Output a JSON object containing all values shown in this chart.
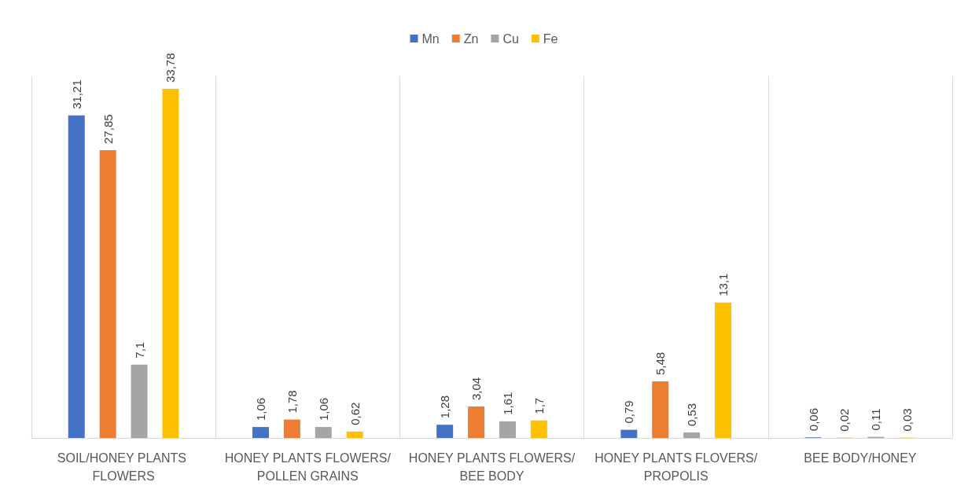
{
  "chart_data": {
    "type": "bar",
    "categories": [
      "SOIL/HONEY PLANTS FLOWERS",
      "HONEY PLANTS FLOWERS/POLLEN GRAINS",
      "HONEY PLANTS FLOWERS/BEE BODY",
      "HONEY PLANTS FLOVERS/PROPOLIS",
      "BEE BODY/HONEY"
    ],
    "series": [
      {
        "name": "Mn",
        "color": "#4472c4",
        "values": [
          31.21,
          1.06,
          1.28,
          0.79,
          0.06
        ],
        "value_labels": [
          "31,21",
          "1,06",
          "1,28",
          "0,79",
          "0,06"
        ]
      },
      {
        "name": "Zn",
        "color": "#ed7d31",
        "values": [
          27.85,
          1.78,
          3.04,
          5.48,
          0.02
        ],
        "value_labels": [
          "27,85",
          "1,78",
          "3,04",
          "5,48",
          "0,02"
        ]
      },
      {
        "name": "Cu",
        "color": "#a5a5a5",
        "values": [
          7.1,
          1.06,
          1.61,
          0.53,
          0.11
        ],
        "value_labels": [
          "7,1",
          "1,06",
          "1,61",
          "0,53",
          "0,11"
        ]
      },
      {
        "name": "Fe",
        "color": "#ffc000",
        "values": [
          33.78,
          0.62,
          1.7,
          13.1,
          0.03
        ],
        "value_labels": [
          "33,78",
          "0,62",
          "1,7",
          "13,1",
          "0,03"
        ]
      }
    ],
    "grid": "x",
    "legend": "top"
  }
}
